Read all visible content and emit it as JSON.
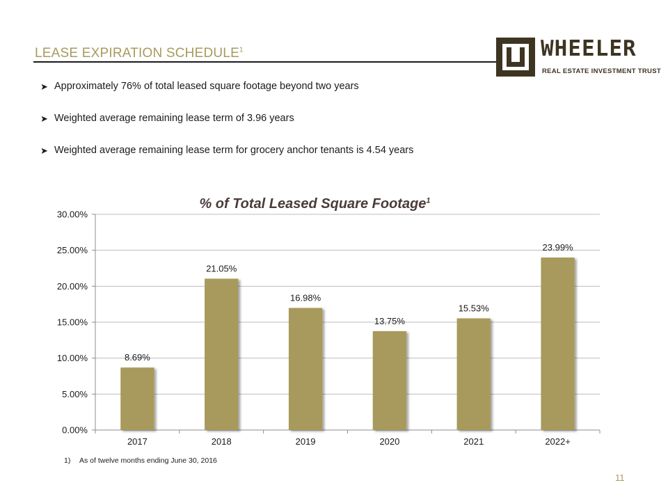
{
  "header": {
    "title": "LEASE EXPIRATION SCHEDULE",
    "title_sup": "1",
    "accent_color": "#a89a5c"
  },
  "logo": {
    "name": "WHEELER",
    "subtitle": "REAL ESTATE INVESTMENT TRUST",
    "color": "#3d3422"
  },
  "bullets": [
    "Approximately 76% of total leased square footage beyond two years",
    "Weighted average remaining lease term of 3.96 years",
    "Weighted average remaining lease term for grocery anchor tenants is 4.54 years"
  ],
  "chart_data": {
    "type": "bar",
    "title": "% of Total Leased Square Footage",
    "title_sup": "1",
    "categories": [
      "2017",
      "2018",
      "2019",
      "2020",
      "2021",
      "2022+"
    ],
    "values": [
      8.69,
      21.05,
      16.98,
      13.75,
      15.53,
      23.99
    ],
    "data_labels": [
      "8.69%",
      "21.05%",
      "16.98%",
      "13.75%",
      "15.53%",
      "23.99%"
    ],
    "yticks": [
      "0.00%",
      "5.00%",
      "10.00%",
      "15.00%",
      "20.00%",
      "25.00%",
      "30.00%"
    ],
    "ylim": [
      0,
      30
    ],
    "grid": true,
    "bar_color": "#a89a5c",
    "xlabel": "",
    "ylabel": ""
  },
  "footnote": {
    "number": "1)",
    "text": "As of twelve months ending June 30, 2016"
  },
  "page_number": "11"
}
